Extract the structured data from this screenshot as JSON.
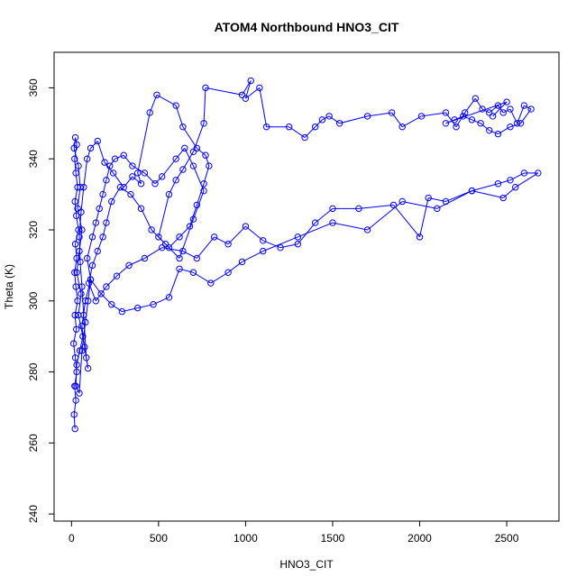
{
  "chart_data": {
    "type": "scatter",
    "title": "ATOM4 Northbound HNO3_CIT",
    "xlabel": "HNO3_CIT",
    "ylabel": "Theta (K)",
    "xlim": [
      -100,
      2800
    ],
    "ylim": [
      238,
      370
    ],
    "xticks": [
      0,
      500,
      1000,
      1500,
      2000,
      2500
    ],
    "yticks": [
      240,
      260,
      280,
      300,
      320,
      340,
      360
    ],
    "grid": false,
    "legend": "none",
    "style": {
      "color": "#0000ff",
      "marker": "open-circle",
      "connected": true
    },
    "series": [
      {
        "values": [
          [
            20,
            264
          ],
          [
            15,
            268
          ],
          [
            25,
            272
          ],
          [
            18,
            276
          ],
          [
            30,
            280
          ],
          [
            22,
            284
          ],
          [
            12,
            288
          ],
          [
            28,
            292
          ],
          [
            20,
            296
          ],
          [
            35,
            300
          ],
          [
            25,
            304
          ],
          [
            18,
            308
          ],
          [
            30,
            312
          ],
          [
            22,
            316
          ],
          [
            40,
            320
          ],
          [
            28,
            324
          ],
          [
            20,
            328
          ],
          [
            35,
            332
          ],
          [
            25,
            336
          ],
          [
            18,
            340
          ],
          [
            30,
            344
          ],
          [
            22,
            346
          ],
          [
            15,
            343
          ],
          [
            40,
            338
          ],
          [
            50,
            332
          ],
          [
            35,
            326
          ],
          [
            60,
            320
          ],
          [
            45,
            314
          ],
          [
            30,
            308
          ],
          [
            55,
            302
          ],
          [
            40,
            296
          ],
          [
            65,
            290
          ],
          [
            48,
            286
          ],
          [
            30,
            282
          ],
          [
            25,
            276
          ],
          [
            45,
            274
          ],
          [
            60,
            286
          ],
          [
            80,
            294
          ],
          [
            95,
            300
          ],
          [
            110,
            306
          ],
          [
            90,
            312
          ],
          [
            120,
            318
          ],
          [
            140,
            322
          ],
          [
            160,
            326
          ],
          [
            180,
            330
          ],
          [
            200,
            334
          ],
          [
            220,
            338
          ],
          [
            250,
            340
          ],
          [
            300,
            341
          ],
          [
            350,
            338
          ],
          [
            420,
            336
          ],
          [
            480,
            333
          ],
          [
            520,
            335
          ],
          [
            600,
            340
          ],
          [
            650,
            343
          ],
          [
            700,
            338
          ],
          [
            760,
            331
          ],
          [
            700,
            323
          ],
          [
            620,
            312
          ],
          [
            540,
            316
          ],
          [
            460,
            320
          ],
          [
            400,
            326
          ],
          [
            340,
            330
          ],
          [
            280,
            332
          ],
          [
            230,
            328
          ],
          [
            200,
            322
          ],
          [
            180,
            318
          ],
          [
            150,
            314
          ],
          [
            120,
            310
          ],
          [
            100,
            305
          ],
          [
            140,
            300
          ],
          [
            200,
            304
          ],
          [
            260,
            307
          ],
          [
            330,
            310
          ],
          [
            420,
            312
          ],
          [
            520,
            315
          ],
          [
            640,
            314
          ],
          [
            720,
            312
          ],
          [
            820,
            318
          ],
          [
            900,
            316
          ],
          [
            1000,
            321
          ],
          [
            1100,
            317
          ],
          [
            1200,
            315
          ],
          [
            1300,
            316
          ],
          [
            1400,
            322
          ],
          [
            1500,
            326
          ],
          [
            1650,
            326
          ],
          [
            1850,
            327
          ],
          [
            2000,
            318
          ],
          [
            2050,
            329
          ],
          [
            2150,
            328
          ],
          [
            2300,
            331
          ],
          [
            2450,
            333
          ],
          [
            2520,
            334
          ],
          [
            2600,
            336
          ],
          [
            2680,
            336
          ],
          [
            2550,
            332
          ],
          [
            2480,
            329
          ],
          [
            2300,
            331
          ],
          [
            2100,
            326
          ],
          [
            1900,
            328
          ],
          [
            1700,
            320
          ],
          [
            1500,
            322
          ],
          [
            1300,
            318
          ],
          [
            1100,
            314
          ],
          [
            980,
            311
          ],
          [
            900,
            308
          ],
          [
            800,
            305
          ],
          [
            700,
            308
          ],
          [
            620,
            309
          ],
          [
            560,
            301
          ],
          [
            470,
            299
          ],
          [
            380,
            298
          ],
          [
            290,
            297
          ],
          [
            230,
            299
          ],
          [
            170,
            302
          ],
          [
            110,
            306
          ],
          [
            80,
            300
          ],
          [
            60,
            293
          ],
          [
            75,
            287
          ],
          [
            95,
            281
          ],
          [
            85,
            284
          ],
          [
            70,
            296
          ],
          [
            60,
            304
          ],
          [
            50,
            311
          ],
          [
            45,
            318
          ],
          [
            55,
            325
          ],
          [
            70,
            332
          ],
          [
            90,
            340
          ],
          [
            110,
            343
          ],
          [
            150,
            345
          ],
          [
            190,
            339
          ],
          [
            240,
            336
          ],
          [
            300,
            332
          ],
          [
            350,
            335
          ],
          [
            400,
            333
          ],
          [
            380,
            336
          ],
          [
            450,
            353
          ],
          [
            490,
            358
          ],
          [
            600,
            355
          ],
          [
            640,
            349
          ],
          [
            720,
            343
          ],
          [
            770,
            341
          ],
          [
            790,
            338
          ],
          [
            760,
            333
          ],
          [
            720,
            327
          ],
          [
            680,
            321
          ],
          [
            620,
            318
          ],
          [
            560,
            315
          ],
          [
            500,
            318
          ],
          [
            560,
            330
          ],
          [
            600,
            334
          ],
          [
            640,
            337
          ],
          [
            700,
            342
          ],
          [
            760,
            350
          ],
          [
            770,
            360
          ],
          [
            980,
            358
          ],
          [
            1030,
            362
          ],
          [
            1000,
            357
          ],
          [
            1080,
            360
          ],
          [
            1120,
            349
          ],
          [
            1250,
            349
          ],
          [
            1340,
            346
          ],
          [
            1400,
            349
          ],
          [
            1440,
            351
          ],
          [
            1480,
            352
          ],
          [
            1540,
            350
          ],
          [
            1700,
            352
          ],
          [
            1840,
            353
          ],
          [
            1900,
            349
          ],
          [
            2010,
            352
          ],
          [
            2150,
            353
          ],
          [
            2210,
            349
          ],
          [
            2260,
            353
          ],
          [
            2320,
            357
          ],
          [
            2360,
            354
          ],
          [
            2400,
            353
          ],
          [
            2450,
            355
          ],
          [
            2480,
            353
          ],
          [
            2520,
            354
          ],
          [
            2560,
            350
          ],
          [
            2600,
            355
          ],
          [
            2640,
            354
          ],
          [
            2580,
            350
          ],
          [
            2520,
            349
          ],
          [
            2450,
            347
          ],
          [
            2400,
            348
          ],
          [
            2350,
            350
          ],
          [
            2300,
            351
          ],
          [
            2250,
            352
          ],
          [
            2200,
            351
          ],
          [
            2150,
            350
          ],
          [
            2500,
            356
          ],
          [
            2420,
            352
          ]
        ]
      }
    ]
  }
}
